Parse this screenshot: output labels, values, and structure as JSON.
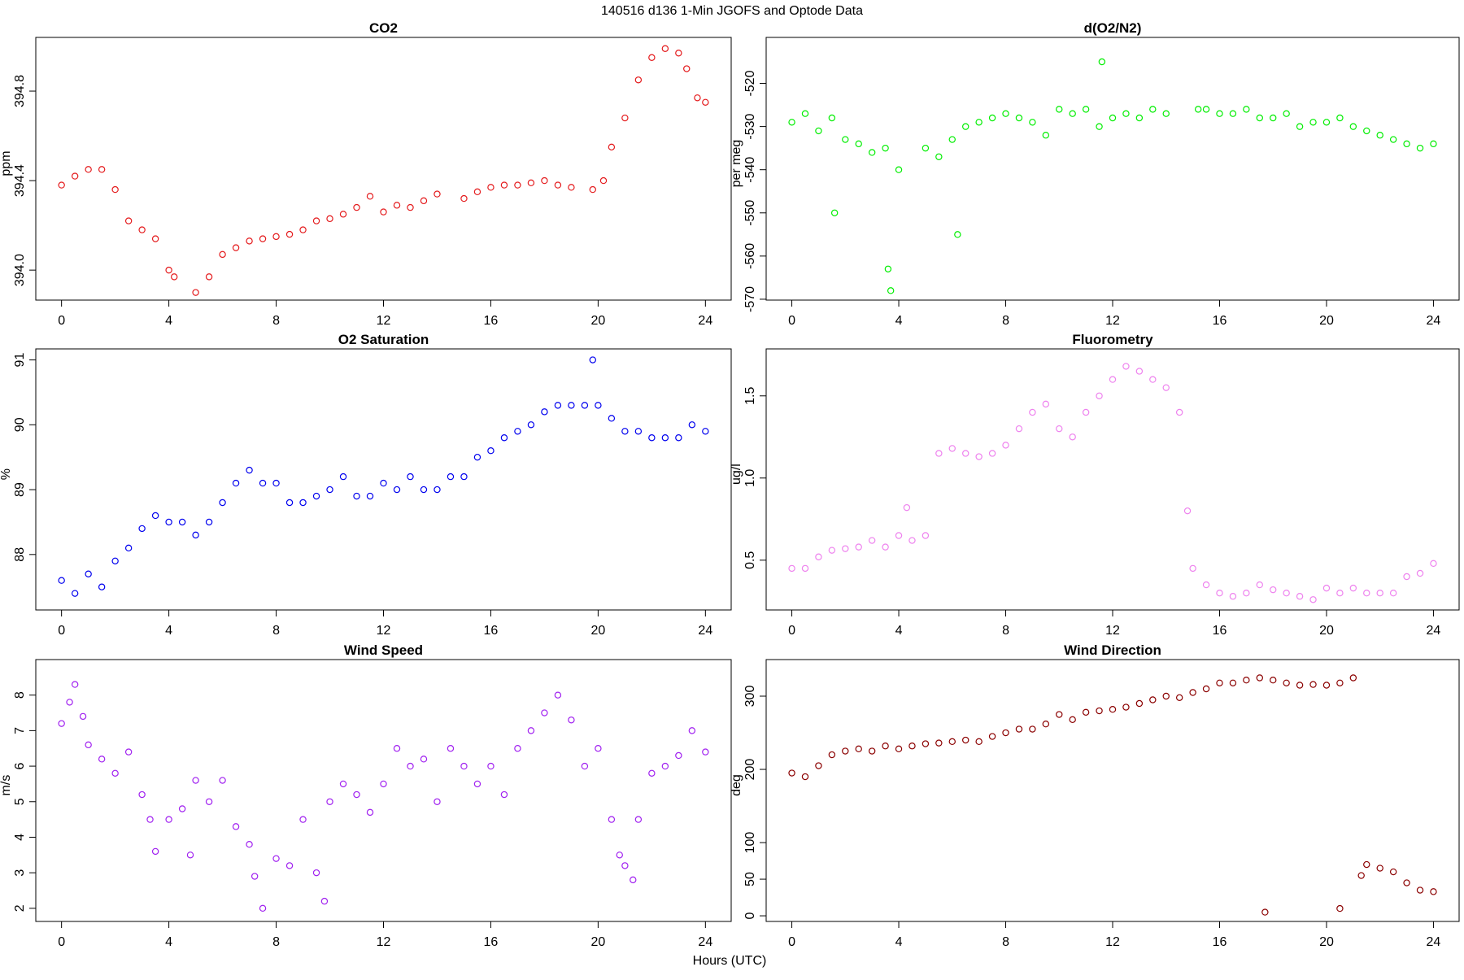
{
  "figure": {
    "title": "140516   d136   1-Min  JGOFS and Optode Data",
    "xlabel": "Hours (UTC)"
  },
  "chart_data": [
    {
      "type": "scatter",
      "title": "CO2",
      "ylabel": "ppm",
      "color": "#e41a1c",
      "x": [
        0,
        0.5,
        1,
        1.5,
        2,
        2.5,
        3,
        3.5,
        4,
        4.2,
        5,
        5.5,
        6,
        6.5,
        7,
        7.5,
        8,
        8.5,
        9,
        9.5,
        10,
        10.5,
        11,
        11.5,
        12,
        12.5,
        13,
        13.5,
        14,
        15,
        15.5,
        16,
        16.5,
        17,
        17.5,
        18,
        18.5,
        19,
        19.8,
        20.2,
        20.5,
        21,
        21.5,
        22,
        22.5,
        23,
        23.3,
        23.7,
        24
      ],
      "values": [
        394.38,
        394.42,
        394.45,
        394.45,
        394.36,
        394.22,
        394.18,
        394.14,
        394.0,
        393.97,
        393.9,
        393.97,
        394.07,
        394.1,
        394.13,
        394.14,
        394.15,
        394.16,
        394.18,
        394.22,
        394.23,
        394.25,
        394.28,
        394.33,
        394.26,
        394.29,
        394.28,
        394.31,
        394.34,
        394.32,
        394.35,
        394.37,
        394.38,
        394.38,
        394.39,
        394.4,
        394.38,
        394.37,
        394.36,
        394.4,
        394.55,
        394.68,
        394.85,
        394.95,
        394.99,
        394.97,
        394.9,
        394.77,
        394.75
      ],
      "xlim": [
        -0.96,
        24.96
      ],
      "xticks": [
        0,
        4,
        8,
        12,
        16,
        20,
        24
      ],
      "ylim": [
        393.866,
        395.04
      ],
      "yticks": [
        {
          "value": 394,
          "label": "394.0"
        },
        394.4,
        394.8
      ]
    },
    {
      "type": "scatter",
      "title": "d(O2/N2)",
      "ylabel": "per meg",
      "color": "#00ee00",
      "x": [
        0,
        0.5,
        1,
        1.5,
        1.6,
        2,
        2.5,
        3,
        3.5,
        3.6,
        3.7,
        4,
        5,
        5.5,
        6,
        6.2,
        6.5,
        7,
        7.5,
        8,
        8.5,
        9,
        9.5,
        10,
        10.5,
        11,
        11.5,
        11.6,
        12,
        12.5,
        13,
        13.5,
        14,
        15.2,
        15.5,
        16,
        16.5,
        17,
        17.5,
        18,
        18.5,
        19,
        19.5,
        20,
        20.5,
        21,
        21.5,
        22,
        22.5,
        23,
        23.5,
        24
      ],
      "values": [
        -529,
        -527,
        -531,
        -528,
        -550,
        -533,
        -534,
        -536,
        -535,
        -563,
        -568,
        -540,
        -535,
        -537,
        -533,
        -555,
        -530,
        -529,
        -528,
        -527,
        -528,
        -529,
        -532,
        -526,
        -527,
        -526,
        -530,
        -515,
        -528,
        -527,
        -528,
        -526,
        -527,
        -526,
        -526,
        -527,
        -527,
        -526,
        -528,
        -528,
        -527,
        -530,
        -529,
        -529,
        -528,
        -530,
        -531,
        -532,
        -533,
        -534,
        -535,
        -534
      ],
      "xlim": [
        -0.96,
        24.96
      ],
      "xticks": [
        0,
        4,
        8,
        12,
        16,
        20,
        24
      ],
      "ylim": [
        -570.2,
        -509.35
      ],
      "yticks": [
        -570,
        -560,
        -550,
        -540,
        -530,
        -520
      ]
    },
    {
      "type": "scatter",
      "title": "O2 Saturation",
      "ylabel": "%",
      "color": "#0000ee",
      "x": [
        0,
        0.5,
        1,
        1.5,
        2,
        2.5,
        3,
        3.5,
        4,
        4.5,
        5,
        5.5,
        6,
        6.5,
        7,
        7.5,
        8,
        8.5,
        9,
        9.5,
        10,
        10.5,
        11,
        11.5,
        12,
        12.5,
        13,
        13.5,
        14,
        14.5,
        15,
        15.5,
        16,
        16.5,
        17,
        17.5,
        18,
        18.5,
        19,
        19.5,
        19.8,
        20,
        20.5,
        21,
        21.5,
        22,
        22.5,
        23,
        23.5,
        24
      ],
      "values": [
        87.6,
        87.4,
        87.7,
        87.5,
        87.9,
        88.1,
        88.4,
        88.6,
        88.5,
        88.5,
        88.3,
        88.5,
        88.8,
        89.1,
        89.3,
        89.1,
        89.1,
        88.8,
        88.8,
        88.9,
        89.0,
        89.2,
        88.9,
        88.9,
        89.1,
        89.0,
        89.2,
        89.0,
        89.0,
        89.2,
        89.2,
        89.5,
        89.6,
        89.8,
        89.9,
        90.0,
        90.2,
        90.3,
        90.3,
        90.3,
        91.0,
        90.3,
        90.1,
        89.9,
        89.9,
        89.8,
        89.8,
        89.8,
        90.0,
        89.9
      ],
      "xlim": [
        -0.96,
        24.96
      ],
      "xticks": [
        0,
        4,
        8,
        12,
        16,
        20,
        24
      ],
      "ylim": [
        87.145,
        91.17
      ],
      "yticks": [
        88,
        89,
        90,
        91
      ]
    },
    {
      "type": "scatter",
      "title": "Fluorometry",
      "ylabel": "ug/l",
      "color": "#ee82ee",
      "x": [
        0,
        0.5,
        1,
        1.5,
        2,
        2.5,
        3,
        3.5,
        4,
        4.3,
        4.5,
        5,
        5.5,
        6,
        6.5,
        7,
        7.5,
        8,
        8.5,
        9,
        9.5,
        10,
        10.5,
        11,
        11.5,
        12,
        12.5,
        13,
        13.5,
        14,
        14.5,
        14.8,
        15,
        15.5,
        16,
        16.5,
        17,
        17.5,
        18,
        18.5,
        19,
        19.5,
        20,
        20.5,
        21,
        21.5,
        22,
        22.5,
        23,
        23.5,
        24
      ],
      "values": [
        0.45,
        0.45,
        0.52,
        0.56,
        0.57,
        0.58,
        0.62,
        0.58,
        0.65,
        0.82,
        0.62,
        0.65,
        1.15,
        1.18,
        1.15,
        1.13,
        1.15,
        1.2,
        1.3,
        1.4,
        1.45,
        1.3,
        1.25,
        1.4,
        1.5,
        1.6,
        1.68,
        1.65,
        1.6,
        1.55,
        1.4,
        0.8,
        0.45,
        0.35,
        0.3,
        0.28,
        0.3,
        0.35,
        0.32,
        0.3,
        0.28,
        0.26,
        0.33,
        0.3,
        0.33,
        0.3,
        0.3,
        0.3,
        0.4,
        0.42,
        0.48
      ],
      "xlim": [
        -0.96,
        24.96
      ],
      "xticks": [
        0,
        4,
        8,
        12,
        16,
        20,
        24
      ],
      "ylim": [
        0.197,
        1.786
      ],
      "yticks": [
        0.5,
        {
          "value": 1,
          "label": "1.0"
        },
        1.5
      ]
    },
    {
      "type": "scatter",
      "title": "Wind Speed",
      "ylabel": "m/s",
      "color": "#a020f0",
      "x": [
        0,
        0.3,
        0.5,
        0.8,
        1,
        1.5,
        2,
        2.5,
        3,
        3.3,
        3.5,
        4,
        4.5,
        4.8,
        5,
        5.5,
        6,
        6.5,
        7,
        7.2,
        7.5,
        8,
        8.5,
        9,
        9.5,
        9.8,
        10,
        10.5,
        11,
        11.5,
        12,
        12.5,
        13,
        13.5,
        14,
        14.5,
        15,
        15.5,
        16,
        16.5,
        17,
        17.5,
        18,
        18.5,
        19,
        19.5,
        20,
        20.5,
        20.8,
        21,
        21.3,
        21.5,
        22,
        22.5,
        23,
        23.5,
        24
      ],
      "values": [
        7.2,
        7.8,
        8.3,
        7.4,
        6.6,
        6.2,
        5.8,
        6.4,
        5.2,
        4.5,
        3.6,
        4.5,
        4.8,
        3.5,
        5.6,
        5.0,
        5.6,
        4.3,
        3.8,
        2.9,
        2.0,
        3.4,
        3.2,
        4.5,
        3.0,
        2.2,
        5.0,
        5.5,
        5.2,
        4.7,
        5.5,
        6.5,
        6.0,
        6.2,
        5.0,
        6.5,
        6.0,
        5.5,
        6.0,
        5.2,
        6.5,
        7.0,
        7.5,
        8.0,
        7.3,
        6.0,
        6.5,
        4.5,
        3.5,
        3.2,
        2.8,
        4.5,
        5.8,
        6.0,
        6.3,
        7.0,
        6.4
      ],
      "xlim": [
        -0.96,
        24.96
      ],
      "xticks": [
        0,
        4,
        8,
        12,
        16,
        20,
        24
      ],
      "ylim": [
        1.63,
        9.0
      ],
      "yticks": [
        2,
        3,
        4,
        5,
        6,
        7,
        8
      ]
    },
    {
      "type": "scatter",
      "title": "Wind Direction",
      "ylabel": "deg",
      "color": "#8b0000",
      "x": [
        0,
        0.5,
        1,
        1.5,
        2,
        2.5,
        3,
        3.5,
        4,
        4.5,
        5,
        5.5,
        6,
        6.5,
        7,
        7.5,
        8,
        8.5,
        9,
        9.5,
        10,
        10.5,
        11,
        11.5,
        12,
        12.5,
        13,
        13.5,
        14,
        14.5,
        15,
        15.5,
        16,
        16.5,
        17,
        17.5,
        17.7,
        18,
        18.5,
        19,
        19.5,
        20,
        20.5,
        20.5,
        21,
        21.3,
        21.5,
        22,
        22.5,
        23,
        23.5,
        24
      ],
      "values": [
        195,
        190,
        205,
        220,
        225,
        228,
        225,
        232,
        228,
        232,
        235,
        236,
        238,
        240,
        238,
        245,
        250,
        255,
        255,
        262,
        275,
        268,
        278,
        280,
        282,
        285,
        290,
        295,
        300,
        298,
        305,
        310,
        318,
        318,
        322,
        325,
        5,
        322,
        318,
        315,
        316,
        315,
        318,
        10,
        325,
        55,
        70,
        65,
        60,
        45,
        35,
        33
      ],
      "xlim": [
        -0.96,
        24.96
      ],
      "xticks": [
        0,
        4,
        8,
        12,
        16,
        20,
        24
      ],
      "ylim": [
        -7.7,
        350
      ],
      "yticks": [
        0,
        50,
        100,
        200,
        300
      ]
    }
  ]
}
